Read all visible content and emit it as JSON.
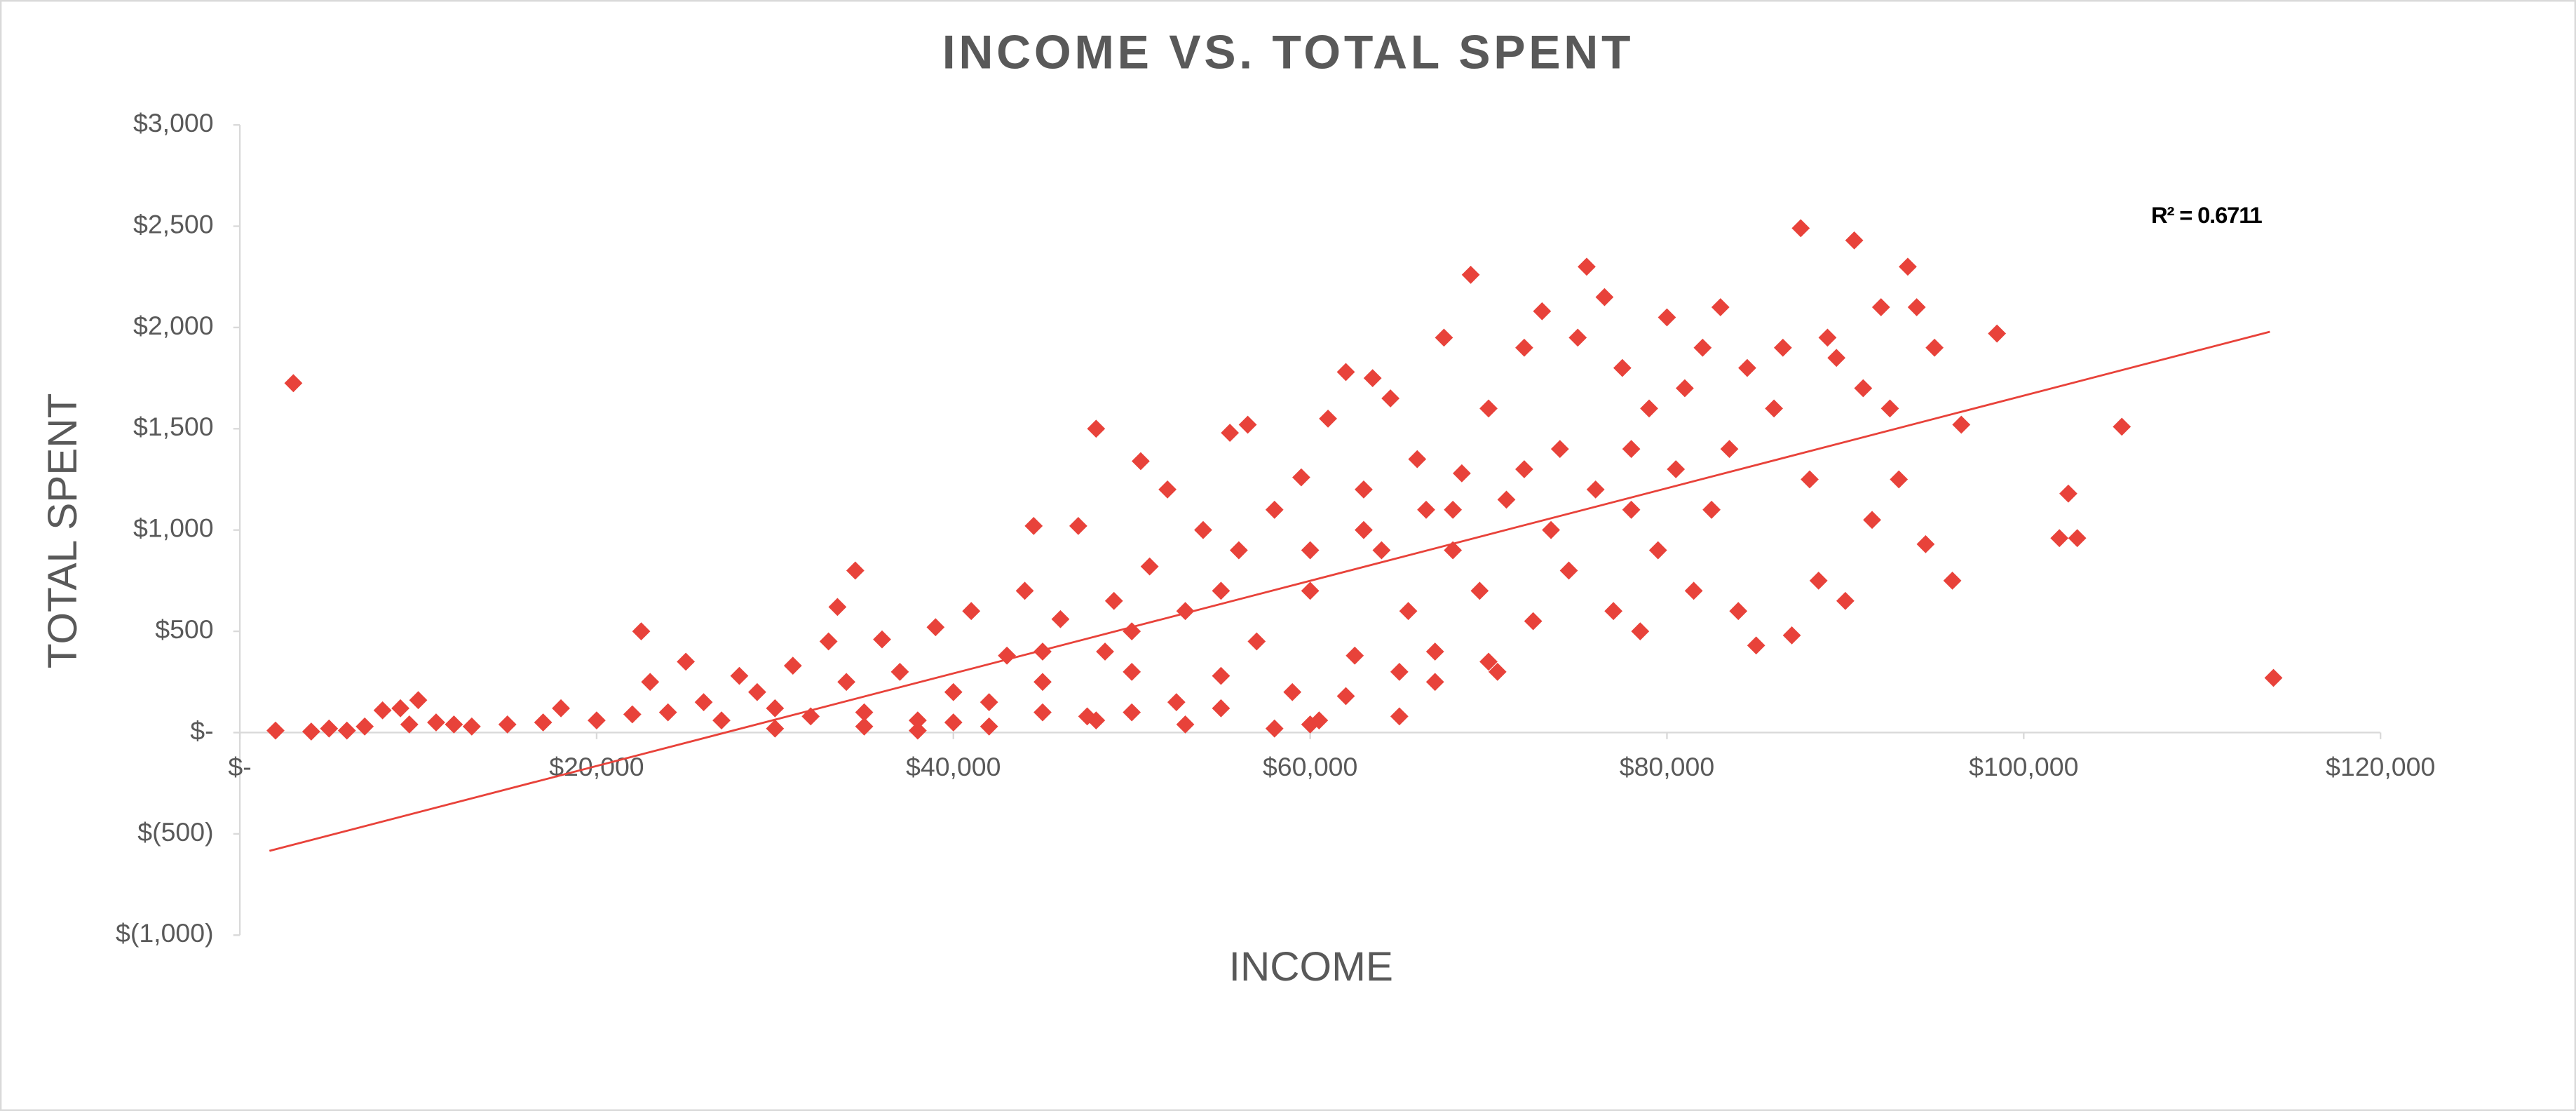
{
  "chart_data": {
    "type": "scatter",
    "title": "INCOME VS. TOTAL SPENT",
    "x_label": "INCOME",
    "y_label": "TOTAL SPENT",
    "color": "#e8423a",
    "marker": "diamond",
    "annotation": "R² = 0.6711",
    "xlim": [
      0,
      120000
    ],
    "xticks": [
      {
        "value": 0,
        "label": "$-"
      },
      {
        "value": 20000,
        "label": "$20,000"
      },
      {
        "value": 40000,
        "label": "$40,000"
      },
      {
        "value": 60000,
        "label": "$60,000"
      },
      {
        "value": 80000,
        "label": "$80,000"
      },
      {
        "value": 100000,
        "label": "$100,000"
      },
      {
        "value": 120000,
        "label": "$120,000"
      }
    ],
    "ylim": [
      -1000,
      3000
    ],
    "yticks": [
      {
        "value": 3000,
        "label": "$3,000"
      },
      {
        "value": 2500,
        "label": "$2,500"
      },
      {
        "value": 2000,
        "label": "$2,000"
      },
      {
        "value": 1500,
        "label": "$1,500"
      },
      {
        "value": 1000,
        "label": "$1,000"
      },
      {
        "value": 500,
        "label": "$500"
      },
      {
        "value": 0,
        "label": "$-"
      },
      {
        "value": -500,
        "label": "$(500)"
      },
      {
        "value": -1000,
        "label": "$(1,000)"
      }
    ],
    "x": [
      2000,
      3000,
      4000,
      5000,
      6000,
      7000,
      8000,
      9000,
      9500,
      10000,
      11000,
      12000,
      13000,
      15000,
      17000,
      18000,
      20000,
      22000,
      22500,
      23000,
      24000,
      25000,
      26000,
      27000,
      28000,
      29000,
      30000,
      31000,
      32000,
      33000,
      33500,
      34000,
      34500,
      35000,
      36000,
      37000,
      38000,
      39000,
      40000,
      41000,
      42000,
      43000,
      44000,
      44500,
      45000,
      46000,
      47000,
      47500,
      48000,
      48500,
      49000,
      50000,
      50500,
      51000,
      52000,
      52500,
      53000,
      54000,
      55000,
      55500,
      56000,
      56500,
      57000,
      58000,
      59000,
      59500,
      60000,
      60500,
      61000,
      62000,
      62500,
      63000,
      63500,
      64000,
      64500,
      65000,
      65500,
      66000,
      66500,
      67000,
      67500,
      68000,
      68500,
      69000,
      69500,
      70000,
      70500,
      71000,
      72000,
      72500,
      73000,
      73500,
      74000,
      74500,
      75000,
      75500,
      76000,
      76500,
      77000,
      77500,
      78000,
      78500,
      79000,
      79500,
      80000,
      80500,
      81000,
      81500,
      82000,
      82500,
      83000,
      83500,
      84000,
      84500,
      85000,
      86000,
      86500,
      87000,
      87500,
      88000,
      88500,
      89000,
      89500,
      90000,
      90500,
      91000,
      91500,
      92000,
      92500,
      93000,
      93500,
      94000,
      94500,
      95000,
      96000,
      96500,
      98500,
      102000,
      102500,
      103000,
      105500,
      114000,
      30000,
      35000,
      38000,
      40000,
      42000,
      45000,
      48000,
      50000,
      53000,
      55000,
      58000,
      60000,
      62000,
      65000,
      67000,
      70000,
      45000,
      50000,
      55000,
      60000,
      63000,
      68000,
      72000,
      78000
    ],
    "values": [
      10,
      1725,
      5,
      20,
      10,
      30,
      110,
      120,
      40,
      160,
      50,
      40,
      30,
      40,
      50,
      120,
      60,
      90,
      500,
      250,
      100,
      350,
      150,
      60,
      280,
      200,
      120,
      330,
      80,
      450,
      620,
      250,
      800,
      100,
      460,
      300,
      60,
      520,
      200,
      600,
      150,
      380,
      700,
      1020,
      250,
      560,
      1020,
      80,
      1500,
      400,
      650,
      300,
      1340,
      820,
      1200,
      150,
      600,
      1000,
      280,
      1480,
      900,
      1520,
      450,
      1100,
      200,
      1260,
      700,
      60,
      1550,
      1780,
      380,
      1200,
      1750,
      900,
      1650,
      80,
      600,
      1350,
      1100,
      400,
      1950,
      900,
      1280,
      2260,
      700,
      1600,
      300,
      1150,
      1900,
      550,
      2080,
      1000,
      1400,
      800,
      1950,
      2300,
      1200,
      2150,
      600,
      1800,
      1400,
      500,
      1600,
      900,
      2050,
      1300,
      1700,
      700,
      1900,
      1100,
      2100,
      1400,
      600,
      1800,
      430,
      1600,
      1900,
      480,
      2490,
      1250,
      750,
      1950,
      1850,
      650,
      2430,
      1700,
      1050,
      2100,
      1600,
      1250,
      2300,
      2100,
      930,
      1900,
      750,
      1520,
      1970,
      960,
      1180,
      960,
      1510,
      270,
      20,
      30,
      10,
      50,
      30,
      100,
      60,
      100,
      40,
      120,
      20,
      40,
      180,
      300,
      250,
      350,
      400,
      500,
      700,
      900,
      1000,
      1100,
      1300,
      1100
    ],
    "trendline": {
      "x": [
        1660,
        113800
      ],
      "values": [
        -584,
        1979
      ],
      "color": "#e8423a"
    }
  }
}
